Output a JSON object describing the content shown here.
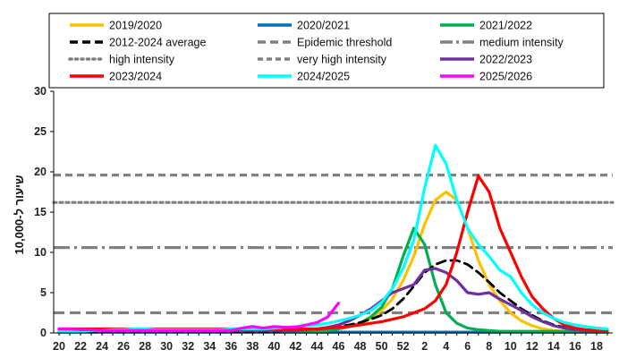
{
  "chart_data": {
    "type": "line",
    "title": "",
    "xlabel": "",
    "ylabel": "שיעור ל-10,000",
    "ylim": [
      0,
      30
    ],
    "yticks": [
      0,
      5,
      10,
      15,
      20,
      25,
      30
    ],
    "weeks": [
      20,
      21,
      22,
      23,
      24,
      25,
      26,
      27,
      28,
      29,
      30,
      31,
      32,
      33,
      34,
      35,
      36,
      37,
      38,
      39,
      40,
      41,
      42,
      43,
      44,
      45,
      46,
      47,
      48,
      49,
      50,
      51,
      52,
      1,
      2,
      3,
      4,
      5,
      6,
      7,
      8,
      9,
      10,
      11,
      12,
      13,
      14,
      15,
      16,
      17,
      18,
      19
    ],
    "xtick_labels": [
      "20",
      "22",
      "24",
      "26",
      "28",
      "30",
      "32",
      "34",
      "36",
      "38",
      "40",
      "42",
      "44",
      "46",
      "48",
      "50",
      "52",
      "2",
      "4",
      "6",
      "8",
      "10",
      "12",
      "14",
      "16",
      "18"
    ],
    "thresholds": [
      {
        "name": "Epidemic threshold",
        "value": 2.5,
        "color": "#808080",
        "style": "dashed"
      },
      {
        "name": "medium intensity",
        "value": 10.6,
        "color": "#808080",
        "style": "dashdot"
      },
      {
        "name": "high intensity",
        "value": 16.2,
        "color": "#808080",
        "style": "dotted"
      },
      {
        "name": "very high intensity",
        "value": 19.6,
        "color": "#808080",
        "style": "dashed-fine"
      }
    ],
    "series": [
      {
        "name": "2019/2020",
        "color": "#FFC000",
        "style": "solid",
        "values": [
          0.3,
          0.3,
          0.3,
          0.3,
          0.3,
          0.3,
          0.3,
          0.3,
          0.3,
          0.3,
          0.3,
          0.3,
          0.3,
          0.3,
          0.3,
          0.3,
          0.3,
          0.3,
          0.3,
          0.3,
          0.3,
          0.3,
          0.3,
          0.3,
          0.3,
          0.4,
          0.5,
          0.8,
          1.2,
          1.8,
          2.8,
          4.2,
          6.5,
          9.5,
          13.5,
          16.5,
          17.5,
          16.5,
          13.0,
          9.0,
          6.0,
          4.0,
          2.5,
          1.5,
          0.9,
          0.5,
          0.3,
          0.2,
          0.2,
          0.2,
          0.2,
          0.2
        ]
      },
      {
        "name": "2020/2021",
        "color": "#0070C0",
        "style": "solid",
        "values": [
          0.1,
          0.1,
          0.1,
          0.1,
          0.1,
          0.1,
          0.1,
          0.1,
          0.1,
          0.1,
          0.1,
          0.1,
          0.1,
          0.1,
          0.1,
          0.1,
          0.1,
          0.1,
          0.1,
          0.1,
          0.1,
          0.1,
          0.1,
          0.1,
          0.1,
          0.1,
          0.1,
          0.1,
          0.1,
          0.1,
          0.1,
          0.1,
          0.1,
          0.1,
          0.1,
          0.1,
          0.1,
          0.1,
          0.1,
          0.1,
          0.1,
          0.1,
          0.1,
          0.1,
          0.1,
          0.1,
          0.1,
          0.1,
          0.1,
          0.1,
          0.1,
          0.1
        ]
      },
      {
        "name": "2021/2022",
        "color": "#00B050",
        "style": "solid",
        "values": [
          0.2,
          0.2,
          0.2,
          0.2,
          0.2,
          0.2,
          0.2,
          0.2,
          0.2,
          0.2,
          0.2,
          0.2,
          0.2,
          0.2,
          0.2,
          0.2,
          0.2,
          0.2,
          0.2,
          0.2,
          0.2,
          0.2,
          0.2,
          0.2,
          0.2,
          0.3,
          0.5,
          0.8,
          1.2,
          2.0,
          3.2,
          5.5,
          9.5,
          13.0,
          11.0,
          6.0,
          2.5,
          1.2,
          0.6,
          0.4,
          0.3,
          0.2,
          0.2,
          0.2,
          0.2,
          0.2,
          0.2,
          0.2,
          0.2,
          0.2,
          0.2,
          0.2
        ]
      },
      {
        "name": "2012-2024 average",
        "color": "#000000",
        "style": "dashed",
        "values": [
          0.2,
          0.2,
          0.2,
          0.2,
          0.2,
          0.2,
          0.2,
          0.2,
          0.2,
          0.2,
          0.2,
          0.2,
          0.2,
          0.2,
          0.2,
          0.2,
          0.2,
          0.2,
          0.2,
          0.2,
          0.2,
          0.3,
          0.3,
          0.4,
          0.5,
          0.6,
          0.8,
          1.0,
          1.3,
          1.7,
          2.2,
          3.0,
          4.2,
          5.8,
          7.5,
          8.5,
          9.0,
          9.0,
          8.5,
          7.5,
          6.3,
          5.0,
          4.0,
          3.0,
          2.2,
          1.5,
          1.0,
          0.7,
          0.5,
          0.4,
          0.3,
          0.3
        ]
      },
      {
        "name": "2022/2023",
        "color": "#7030A0",
        "style": "solid",
        "values": [
          0.3,
          0.3,
          0.3,
          0.3,
          0.3,
          0.3,
          0.3,
          0.3,
          0.3,
          0.3,
          0.3,
          0.3,
          0.3,
          0.3,
          0.3,
          0.3,
          0.3,
          0.3,
          0.3,
          0.3,
          0.3,
          0.3,
          0.3,
          0.4,
          0.5,
          0.7,
          1.0,
          1.5,
          2.2,
          3.0,
          4.0,
          5.0,
          5.5,
          6.0,
          7.8,
          8.0,
          7.5,
          6.5,
          5.0,
          4.8,
          5.0,
          4.2,
          3.5,
          2.8,
          2.0,
          1.4,
          0.9,
          0.6,
          0.4,
          0.3,
          0.3,
          0.3
        ]
      },
      {
        "name": "2023/2024",
        "color": "#FF0000",
        "style": "solid",
        "values": [
          0.5,
          0.5,
          0.5,
          0.5,
          0.5,
          0.5,
          0.5,
          0.5,
          0.5,
          0.5,
          0.5,
          0.5,
          0.5,
          0.5,
          0.5,
          0.5,
          0.5,
          0.5,
          0.5,
          0.5,
          0.5,
          0.5,
          0.5,
          0.5,
          0.5,
          0.6,
          0.7,
          0.8,
          1.0,
          1.2,
          1.4,
          1.7,
          2.0,
          2.5,
          3.0,
          4.0,
          6.0,
          10.0,
          15.0,
          19.5,
          17.5,
          13.0,
          10.0,
          7.0,
          4.5,
          3.0,
          1.8,
          1.0,
          0.6,
          0.4,
          0.3,
          0.3
        ]
      },
      {
        "name": "2024/2025",
        "color": "#00FFFF",
        "style": "solid",
        "values": [
          0.2,
          0.2,
          0.2,
          0.3,
          0.3,
          0.4,
          0.4,
          0.5,
          0.5,
          0.4,
          0.4,
          0.4,
          0.4,
          0.4,
          0.4,
          0.4,
          0.5,
          0.5,
          0.5,
          0.5,
          0.6,
          0.7,
          0.8,
          0.9,
          1.0,
          1.2,
          1.5,
          1.8,
          2.2,
          2.8,
          3.8,
          5.5,
          8.0,
          11.5,
          18.0,
          23.3,
          21.0,
          16.5,
          13.0,
          11.0,
          9.5,
          7.8,
          7.0,
          5.0,
          3.5,
          2.5,
          1.8,
          1.3,
          1.0,
          0.8,
          0.6,
          0.5
        ]
      },
      {
        "name": "2025/2026",
        "color": "#FF00FF",
        "style": "solid",
        "values": [
          0.5,
          0.5,
          0.4,
          0.4,
          0.3,
          0.3,
          0.3,
          0.3,
          0.3,
          0.3,
          0.3,
          0.3,
          0.3,
          0.3,
          0.3,
          0.3,
          0.3,
          0.6,
          0.8,
          0.6,
          0.8,
          0.7,
          0.7,
          1.0,
          1.3,
          2.0,
          3.7
        ]
      }
    ],
    "legend": {
      "placement": "top",
      "entries": [
        {
          "label": "2019/2020",
          "color": "#FFC000",
          "style": "solid"
        },
        {
          "label": "2020/2021",
          "color": "#0070C0",
          "style": "solid"
        },
        {
          "label": "2021/2022",
          "color": "#00B050",
          "style": "solid"
        },
        {
          "label": "2012-2024 average",
          "color": "#000000",
          "style": "dashed"
        },
        {
          "label": "Epidemic threshold",
          "color": "#808080",
          "style": "dashed"
        },
        {
          "label": "medium intensity",
          "color": "#808080",
          "style": "dashdot"
        },
        {
          "label": "high intensity",
          "color": "#808080",
          "style": "dotted"
        },
        {
          "label": "very high intensity",
          "color": "#808080",
          "style": "dashed-fine"
        },
        {
          "label": "2022/2023",
          "color": "#7030A0",
          "style": "solid"
        },
        {
          "label": "2023/2024",
          "color": "#FF0000",
          "style": "solid"
        },
        {
          "label": "2024/2025",
          "color": "#00FFFF",
          "style": "solid"
        },
        {
          "label": "2025/2026",
          "color": "#FF00FF",
          "style": "solid"
        }
      ]
    }
  }
}
